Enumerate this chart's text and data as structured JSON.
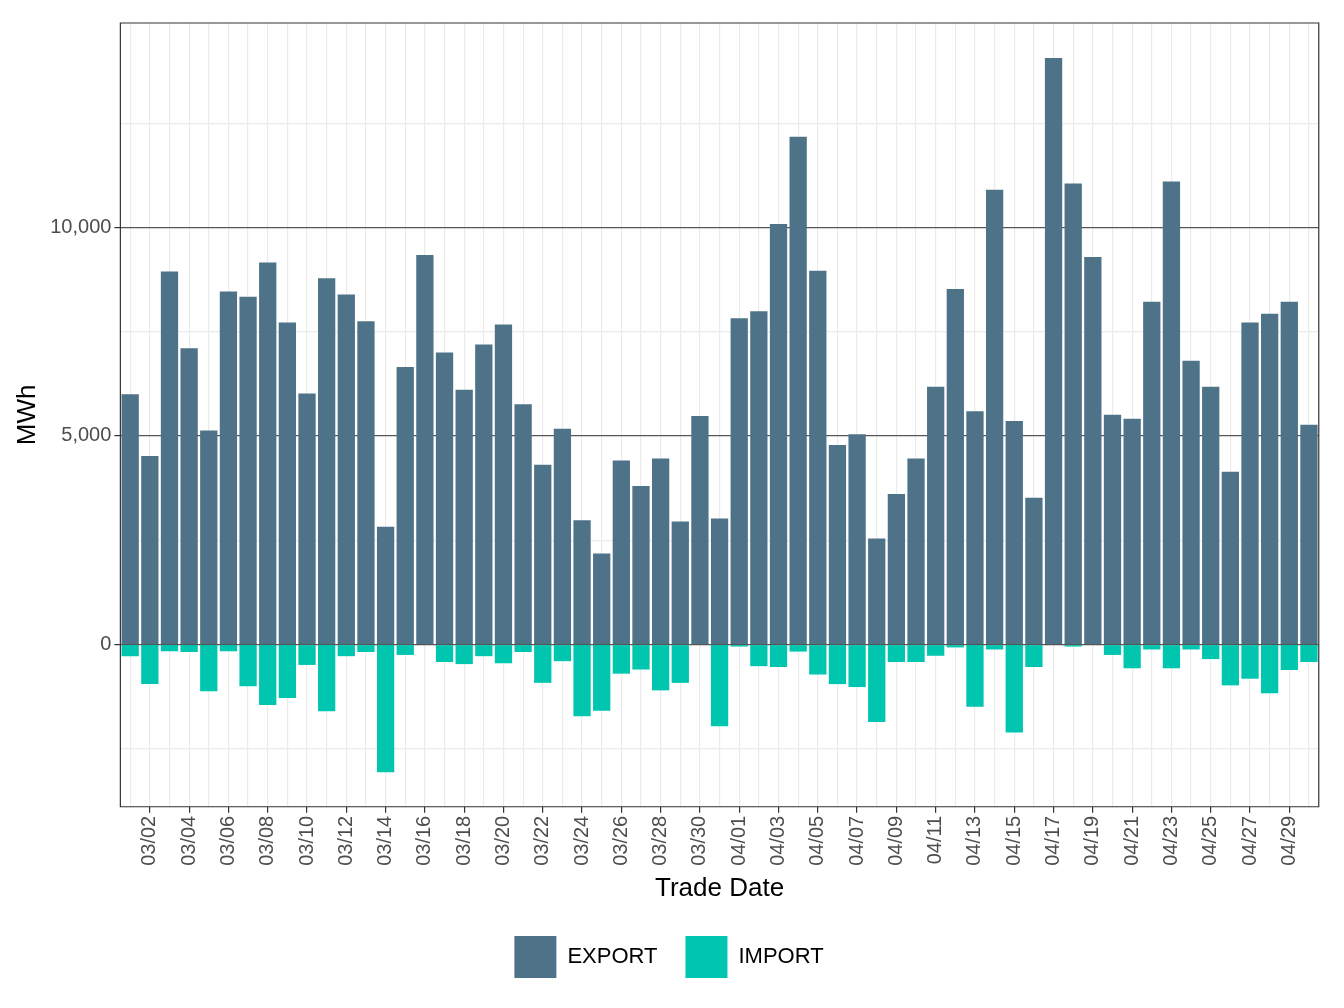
{
  "chart_data": {
    "type": "bar",
    "stacked": true,
    "xlabel": "Trade Date",
    "ylabel": "MWh",
    "categories": [
      null,
      "03/02",
      null,
      "03/04",
      null,
      "03/06",
      null,
      "03/08",
      null,
      "03/10",
      null,
      "03/12",
      null,
      "03/14",
      null,
      "03/16",
      null,
      "03/18",
      null,
      "03/20",
      null,
      "03/22",
      null,
      "03/24",
      null,
      "03/26",
      null,
      "03/28",
      null,
      "03/30",
      null,
      "04/01",
      null,
      "04/03",
      null,
      "04/05",
      null,
      "04/07",
      null,
      "04/09",
      null,
      "04/11",
      null,
      "04/13",
      null,
      "04/15",
      null,
      "04/17",
      null,
      "04/19",
      null,
      "04/21",
      null,
      "04/23",
      null,
      "04/25",
      null,
      "04/27",
      null,
      "04/29",
      null
    ],
    "series": [
      {
        "name": "EXPORT",
        "color": "#4e7389",
        "values": [
          6000,
          4520,
          8940,
          7100,
          5130,
          8460,
          8340,
          9160,
          7720,
          6020,
          8780,
          8390,
          7750,
          2820,
          6650,
          9340,
          7000,
          6110,
          7190,
          7670,
          5760,
          4310,
          5170,
          2980,
          2180,
          4410,
          3800,
          4460,
          2950,
          5480,
          3020,
          7820,
          7990,
          10080,
          12170,
          8960,
          4780,
          5040,
          2540,
          3610,
          4460,
          6180,
          8520,
          5590,
          10900,
          5360,
          3520,
          14060,
          11050,
          9290,
          5510,
          5410,
          8220,
          11100,
          6800,
          6180,
          4140,
          7720,
          7930,
          8220,
          5270
        ]
      },
      {
        "name": "IMPORT",
        "color": "#00c6b0",
        "values": [
          -280,
          -950,
          -160,
          -180,
          -1120,
          -160,
          -1000,
          -1450,
          -1280,
          -490,
          -1600,
          -280,
          -180,
          -3060,
          -250,
          0,
          -420,
          -470,
          -280,
          -450,
          -180,
          -920,
          -400,
          -1720,
          -1590,
          -700,
          -600,
          -1100,
          -920,
          0,
          -1960,
          -50,
          -520,
          -540,
          -170,
          -720,
          -950,
          -1020,
          -1860,
          -420,
          -420,
          -270,
          -70,
          -1490,
          -120,
          -2110,
          -540,
          null,
          -50,
          null,
          -250,
          -570,
          -120,
          -570,
          -120,
          -350,
          -980,
          -820,
          -1170,
          -610,
          -420
        ]
      }
    ],
    "ylim": [
      -3890,
      14900
    ],
    "yticks": [
      {
        "value": -2500,
        "label": null
      },
      0,
      {
        "value": 2500,
        "label": null
      },
      {
        "value": 5000,
        "label": "5,000"
      },
      {
        "value": 7500,
        "label": null
      },
      {
        "value": 10000,
        "label": "10,000"
      },
      {
        "value": 12500,
        "label": null
      }
    ],
    "grid": true,
    "legend": "bottom"
  }
}
